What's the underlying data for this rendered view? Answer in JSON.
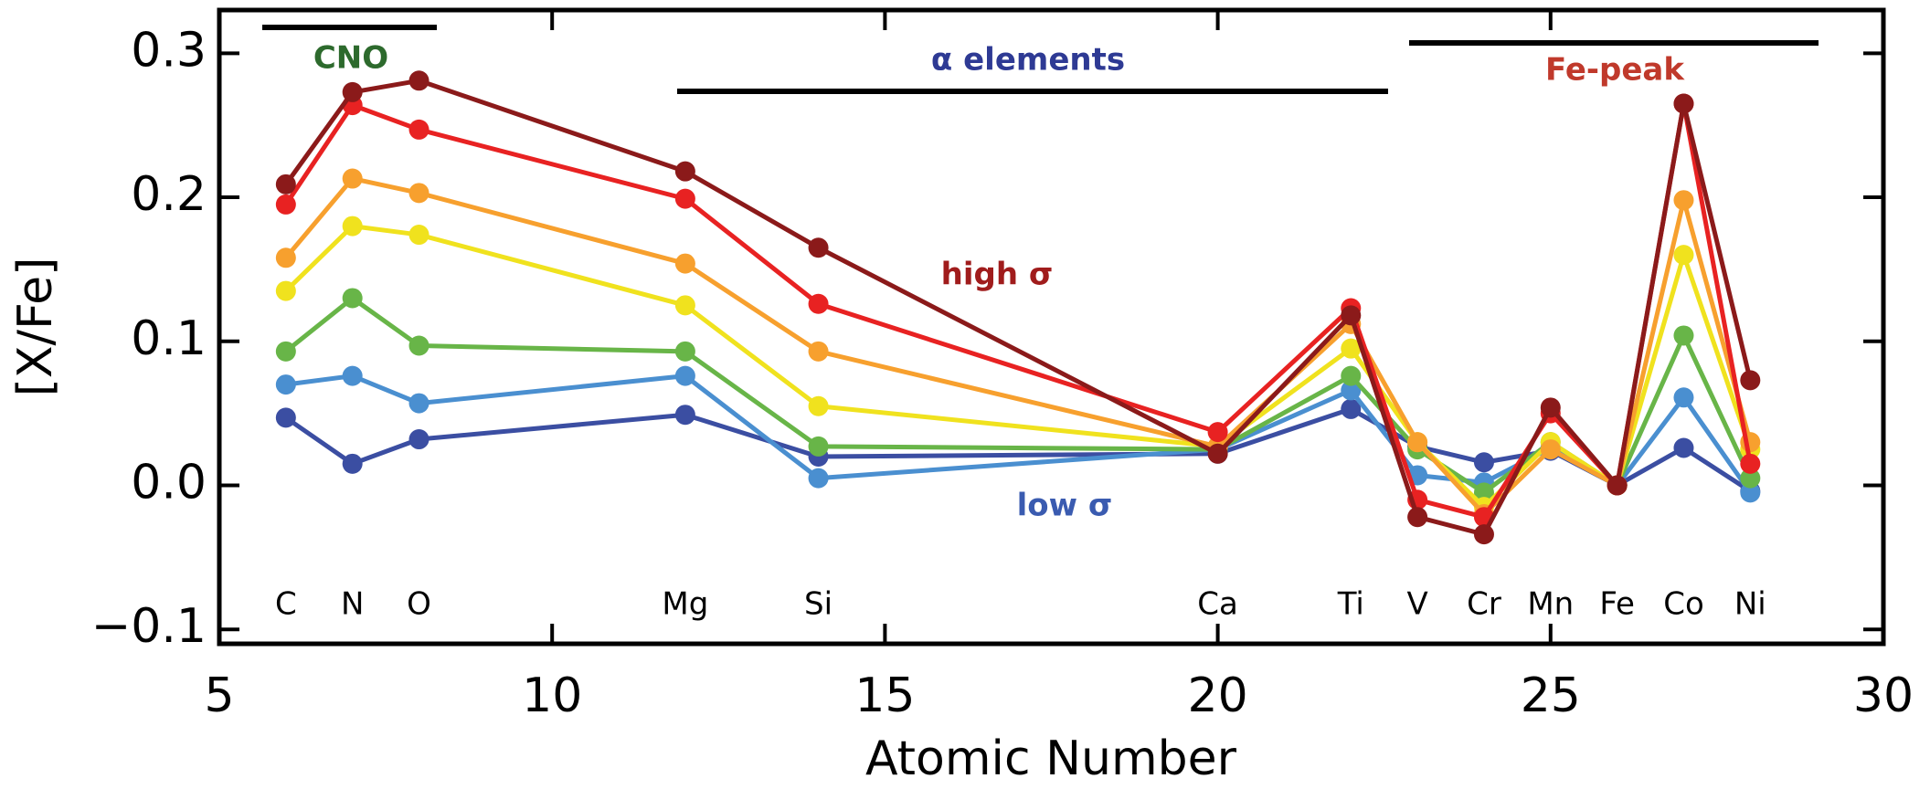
{
  "chart_data": {
    "type": "line",
    "x": [
      6,
      7,
      8,
      12,
      14,
      20,
      22,
      23,
      24,
      25,
      26,
      27,
      28
    ],
    "point_labels": [
      "C",
      "N",
      "O",
      "Mg",
      "Si",
      "Ca",
      "Ti",
      "V",
      "Cr",
      "Mn",
      "Fe",
      "Co",
      "Ni"
    ],
    "xlabel": "Atomic Number",
    "ylabel": "[X/Fe]",
    "xlim": [
      5,
      30
    ],
    "xticks": [
      5,
      10,
      15,
      20,
      25,
      30
    ],
    "ylim": [
      -0.11,
      0.33
    ],
    "yticks": [
      {
        "value": -0.1,
        "label": "−0.1"
      },
      {
        "value": 0,
        "label": "0.0"
      },
      0.1,
      0.2,
      0.3
    ],
    "series": [
      {
        "color": "#3b4ea2",
        "values": [
          0.047,
          0.015,
          0.032,
          0.049,
          0.02,
          0.022,
          0.053,
          0.027,
          0.016,
          0.024,
          0,
          0.026,
          -0.004
        ]
      },
      {
        "color": "#4a8fd0",
        "values": [
          0.07,
          0.076,
          0.057,
          0.076,
          0.005,
          0.025,
          0.066,
          0.007,
          0.002,
          0.026,
          0,
          0.061,
          -0.005
        ]
      },
      {
        "color": "#68b548",
        "values": [
          0.093,
          0.13,
          0.097,
          0.093,
          0.027,
          0.025,
          0.076,
          0.025,
          -0.005,
          0.03,
          0,
          0.104,
          0.005
        ]
      },
      {
        "color": "#f0e21e",
        "values": [
          0.135,
          0.18,
          0.174,
          0.125,
          0.055,
          0.027,
          0.095,
          0.03,
          -0.015,
          0.03,
          0,
          0.16,
          0.025
        ]
      },
      {
        "color": "#f7a02e",
        "values": [
          0.158,
          0.213,
          0.203,
          0.154,
          0.093,
          0.027,
          0.112,
          0.03,
          -0.02,
          0.025,
          0,
          0.198,
          0.03
        ]
      },
      {
        "color": "#e82222",
        "values": [
          0.195,
          0.264,
          0.247,
          0.199,
          0.126,
          0.037,
          0.123,
          -0.01,
          -0.022,
          0.05,
          0,
          0.265,
          0.015
        ]
      },
      {
        "color": "#8b1a1a",
        "values": [
          0.209,
          0.273,
          0.281,
          0.218,
          0.165,
          0.022,
          0.118,
          -0.022,
          -0.034,
          0.054,
          0,
          0.265,
          0.073
        ]
      }
    ],
    "annotations": [
      {
        "text": "CNO",
        "color": "#2d6a2d"
      },
      {
        "text": "α elements",
        "color": "#2e3a94"
      },
      {
        "text": "Fe-peak",
        "color": "#c0392b"
      },
      {
        "text": "high σ",
        "color": "#a01c1c"
      },
      {
        "text": "low σ",
        "color": "#3a5bb0"
      }
    ]
  }
}
